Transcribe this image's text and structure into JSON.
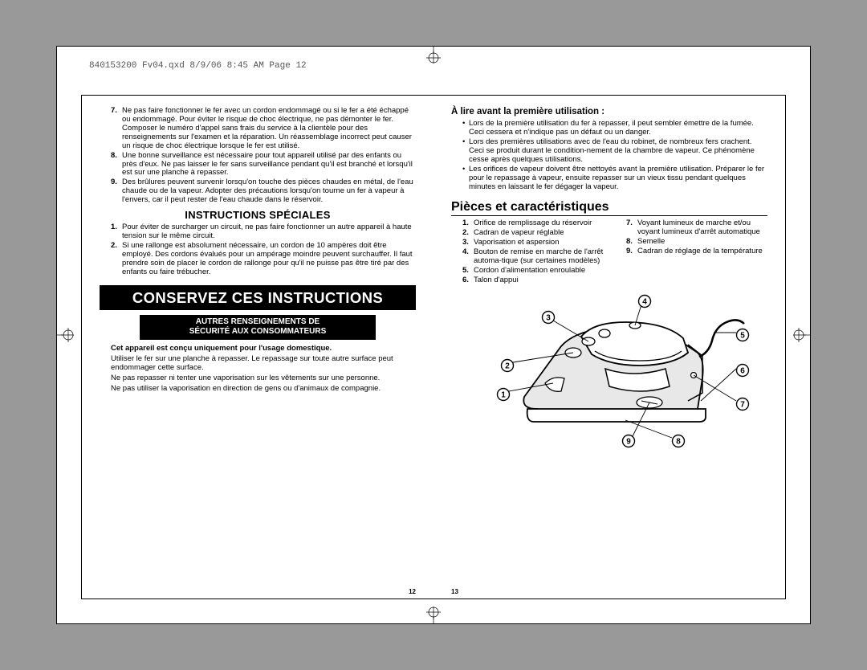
{
  "header": "840153200 Fv04.qxd  8/9/06  8:45 AM  Page 12",
  "left": {
    "warnings": [
      {
        "n": "7.",
        "t": "Ne pas faire fonctionner le fer avec un cordon endommagé ou si le fer a été échappé ou endommagé. Pour éviter le risque de choc électrique, ne pas démonter le fer. Composer le numéro d'appel sans frais du service à la clientèle pour des renseignements sur l'examen et la réparation. Un réassemblage incorrect peut causer un risque de choc électrique lorsque le fer est utilisé."
      },
      {
        "n": "8.",
        "t": "Une bonne surveillance est nécessaire pour tout appareil utilisé par des enfants ou près d'eux. Ne pas laisser le fer sans surveillance pendant qu'il est branché et lorsqu'il est sur une planche à repasser."
      },
      {
        "n": "9.",
        "t": "Des brûlures peuvent survenir lorsqu'on touche des pièces chaudes en métal, de l'eau chaude ou de la vapeur. Adopter des précautions lorsqu'on tourne un fer à vapeur à l'envers, car il peut rester de l'eau chaude dans le réservoir."
      }
    ],
    "special_h": "INSTRUCTIONS SPÉCIALES",
    "special": [
      {
        "n": "1.",
        "t": "Pour éviter de surcharger un circuit, ne pas faire fonctionner un autre appareil à haute tension sur le même circuit."
      },
      {
        "n": "2.",
        "t": "Si une rallonge est absolument nécessaire, un cordon de 10 ampères doit être employé. Des cordons évalués pour un ampérage moindre peuvent surchauffer. Il faut prendre soin de placer le cordon de rallonge pour qu'il ne puisse pas être tiré par des enfants ou faire trébucher."
      }
    ],
    "banner": "CONSERVEZ CES INSTRUCTIONS",
    "sub_banner1": "AUTRES RENSEIGNEMENTS DE",
    "sub_banner2": "SÉCURITÉ AUX CONSOMMATEURS",
    "bold": "Cet appareil est conçu uniquement pour l'usage domestique.",
    "p1": "Utiliser le fer sur une planche à repasser. Le repassage sur toute autre surface peut endommager cette surface.",
    "p2": "Ne pas repasser ni tenter une vaporisation sur les vêtements sur une personne.",
    "p3": "Ne pas utiliser la vaporisation en direction de gens ou d'animaux de compagnie.",
    "page_num": "12"
  },
  "right": {
    "before_h": "À lire avant la première utilisation :",
    "before": [
      "Lors de la première utilisation du fer à repasser, il peut sembler émettre de la fumée. Ceci cessera et n'indique pas un défaut ou un danger.",
      "Lors des premières utilisations avec de l'eau du robinet, de nombreux fers crachent. Ceci se produit durant le condition-nement de la chambre de vapeur. Ce phénomène cesse après quelques utilisations.",
      "Les orifices de vapeur doivent être nettoyés avant la première utilisation. Préparer le fer pour le repassage à vapeur, ensuite repasser sur un vieux tissu pendant quelques minutes en laissant le fer dégager la vapeur."
    ],
    "parts_h": "Pièces et caractéristiques",
    "parts": [
      {
        "n": "1.",
        "t": "Orifice de remplissage du réservoir"
      },
      {
        "n": "2.",
        "t": "Cadran de vapeur réglable"
      },
      {
        "n": "3.",
        "t": "Vaporisation et aspersion"
      },
      {
        "n": "4.",
        "t": "Bouton de remise en marche de l'arrêt automa-tique (sur certaines modèles)"
      },
      {
        "n": "5.",
        "t": "Cordon d'alimentation enroulable"
      },
      {
        "n": "6.",
        "t": "Talon d'appui"
      },
      {
        "n": "7.",
        "t": "Voyant lumineux de marche et/ou voyant lumineux d'arrêt automatique"
      },
      {
        "n": "8.",
        "t": "Semelle"
      },
      {
        "n": "9.",
        "t": "Cadran de réglage de la température"
      }
    ],
    "callouts": [
      "1",
      "2",
      "3",
      "4",
      "5",
      "6",
      "7",
      "8",
      "9"
    ],
    "page_num": "13"
  }
}
